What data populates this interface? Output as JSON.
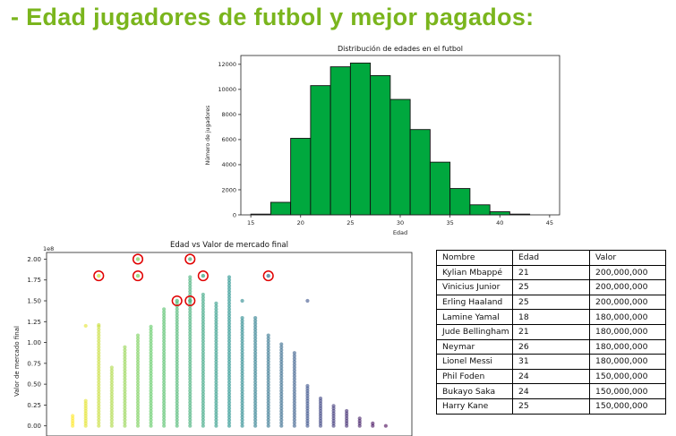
{
  "page": {
    "title": "- Edad jugadores de futbol y mejor pagados:"
  },
  "chart_data": [
    {
      "type": "bar",
      "title": "Distribución de edades en el futbol",
      "xlabel": "Edad",
      "ylabel": "Número de jugadores",
      "bin_edges": [
        15,
        17,
        19,
        21,
        23,
        25,
        27,
        29,
        31,
        33,
        35,
        37,
        39,
        41,
        43
      ],
      "values": [
        60,
        1000,
        6100,
        10300,
        11800,
        12100,
        11100,
        9200,
        6800,
        4200,
        2100,
        800,
        250,
        60
      ],
      "xlim": [
        14,
        46
      ],
      "ylim": [
        0,
        12700
      ],
      "xticks": [
        15,
        20,
        25,
        30,
        35,
        40,
        45
      ],
      "yticks": [
        0,
        2000,
        4000,
        6000,
        8000,
        10000,
        12000
      ],
      "bar_color": "#00a83e",
      "grid": false
    },
    {
      "type": "scatter",
      "title": "Edad vs Valor de mercado final",
      "xlabel": "",
      "ylabel": "Valor de mercado final",
      "y_multiplier_label": "1e8",
      "ylim": [
        -0.1,
        2.08
      ],
      "xlim": [
        14,
        42
      ],
      "yticks": [
        0.0,
        0.25,
        0.5,
        0.75,
        1.0,
        1.25,
        1.5,
        1.75,
        2.0
      ],
      "ytick_labels": [
        "0.00",
        "0.25",
        "0.50",
        "0.75",
        "1.00",
        "1.25",
        "1.50",
        "1.75",
        "2.00"
      ],
      "colormap": "viridis",
      "columns": [
        {
          "age": 16,
          "max": 0.12
        },
        {
          "age": 17,
          "max": 0.3
        },
        {
          "age": 18,
          "max": 1.2
        },
        {
          "age": 19,
          "max": 0.7
        },
        {
          "age": 20,
          "max": 0.95
        },
        {
          "age": 21,
          "max": 1.1
        },
        {
          "age": 22,
          "max": 1.2
        },
        {
          "age": 23,
          "max": 1.4
        },
        {
          "age": 24,
          "max": 1.5
        },
        {
          "age": 25,
          "max": 1.8
        },
        {
          "age": 26,
          "max": 1.6
        },
        {
          "age": 27,
          "max": 1.5
        },
        {
          "age": 28,
          "max": 1.8
        },
        {
          "age": 29,
          "max": 1.3
        },
        {
          "age": 30,
          "max": 1.3
        },
        {
          "age": 31,
          "max": 1.1
        },
        {
          "age": 32,
          "max": 1.0
        },
        {
          "age": 33,
          "max": 0.9
        },
        {
          "age": 34,
          "max": 0.5
        },
        {
          "age": 35,
          "max": 0.35
        },
        {
          "age": 36,
          "max": 0.25
        },
        {
          "age": 37,
          "max": 0.2
        },
        {
          "age": 38,
          "max": 0.1
        },
        {
          "age": 39,
          "max": 0.05
        },
        {
          "age": 40,
          "max": 0.02
        }
      ],
      "outliers": [
        {
          "age": 17,
          "value": 1.2
        },
        {
          "age": 18,
          "value": 1.21
        },
        {
          "age": 29,
          "value": 1.5
        },
        {
          "age": 34,
          "value": 1.5
        }
      ],
      "highlighted": [
        {
          "age": 18,
          "value": 1.8
        },
        {
          "age": 21,
          "value": 2.0
        },
        {
          "age": 21,
          "value": 1.8
        },
        {
          "age": 24,
          "value": 1.5
        },
        {
          "age": 25,
          "value": 2.0
        },
        {
          "age": 25,
          "value": 1.5
        },
        {
          "age": 26,
          "value": 1.8
        },
        {
          "age": 31,
          "value": 1.8
        }
      ],
      "highlight_color": "#e00000"
    }
  ],
  "table": {
    "headers": [
      "Nombre",
      "Edad",
      "Valor"
    ],
    "rows": [
      [
        "Kylian Mbappé",
        "21",
        "200,000,000"
      ],
      [
        "Vinicius Junior",
        "25",
        "200,000,000"
      ],
      [
        "Erling Haaland",
        "25",
        "200,000,000"
      ],
      [
        "Lamine Yamal",
        "18",
        "180,000,000"
      ],
      [
        "Jude Bellingham",
        "21",
        "180,000,000"
      ],
      [
        "Neymar",
        "26",
        "180,000,000"
      ],
      [
        "Lionel Messi",
        "31",
        "180,000,000"
      ],
      [
        "Phil Foden",
        "24",
        "150,000,000"
      ],
      [
        "Bukayo Saka",
        "24",
        "150,000,000"
      ],
      [
        "Harry Kane",
        "25",
        "150,000,000"
      ]
    ]
  }
}
